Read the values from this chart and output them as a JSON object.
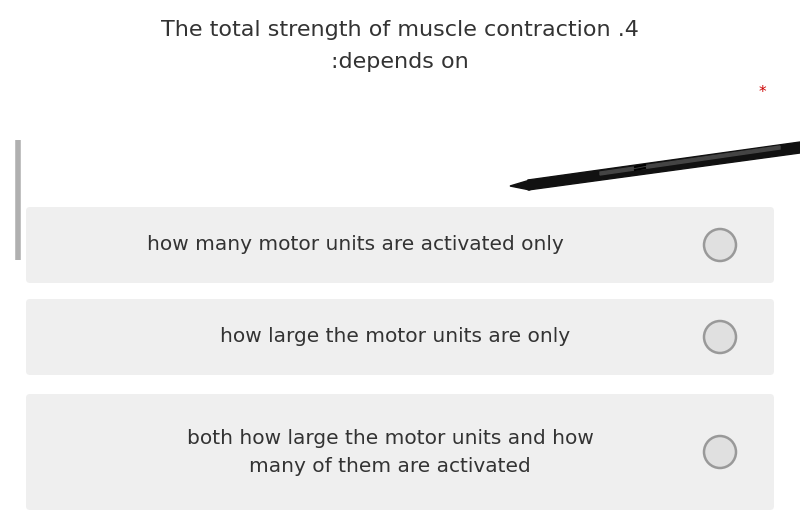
{
  "title_line1": "The total strength of muscle contraction .4",
  "title_line2": ":depends on",
  "star_text": "*",
  "star_color": "#cc0000",
  "options": [
    "how many motor units are activated only",
    "how large the motor units are only",
    "both how large the motor units and how\nmany of them are activated"
  ],
  "bg_color": "#ffffff",
  "option_bg_color": "#efefef",
  "text_color": "#333333",
  "title_fontsize": 16,
  "option_fontsize": 14.5,
  "left_bar_color": "#aaaaaa",
  "radio_edge_color": "#999999",
  "radio_face_color": "#e0e0e0"
}
